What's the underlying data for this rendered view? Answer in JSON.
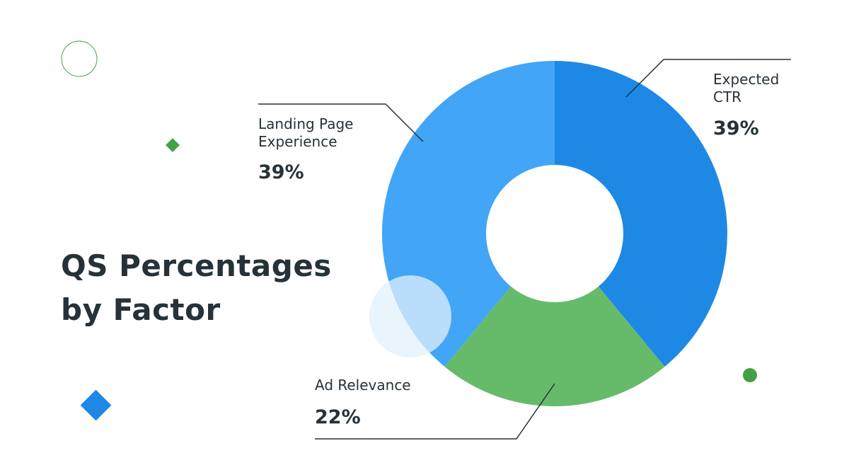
{
  "chart_data": {
    "type": "pie",
    "donut": true,
    "title": "QS Percentages by Factor",
    "categories": [
      "Expected CTR",
      "Ad Relevance",
      "Landing Page Experience"
    ],
    "values": [
      39,
      22,
      39
    ],
    "value_labels": [
      "39%",
      "22%",
      "39%"
    ],
    "colors": [
      "#1E88E5",
      "#66BB6A",
      "#42A5F5"
    ],
    "legend": "none",
    "label_lines": [
      "Expected",
      "CTR"
    ],
    "label_landing": [
      "Landing Page",
      "Experience"
    ]
  }
}
